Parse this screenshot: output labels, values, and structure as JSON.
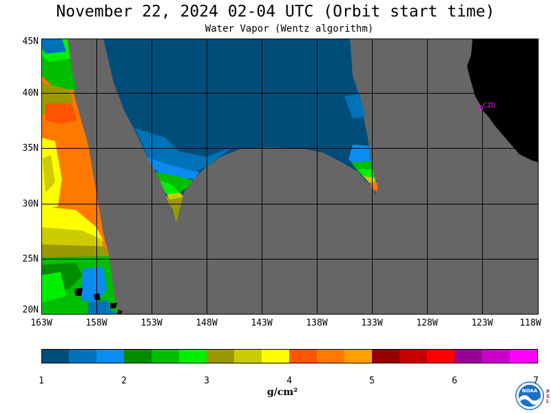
{
  "header": {
    "title": "November 22, 2024  02-04 UTC  (Orbit start time)",
    "subtitle": "Water Vapor (Wentz algorithm)"
  },
  "map": {
    "lat_labels": [
      "45N",
      "40N",
      "35N",
      "30N",
      "25N",
      "20N"
    ],
    "lon_labels": [
      "163W",
      "158W",
      "153W",
      "148W",
      "143W",
      "138W",
      "133W",
      "128W",
      "123W",
      "118W"
    ],
    "station_label": "CZD",
    "colors": {
      "no_data": "#666666",
      "land": "#000000",
      "grid": "#000000",
      "station": "#ff00ff"
    }
  },
  "colorbar": {
    "labels": [
      "1",
      "2",
      "3",
      "4",
      "5",
      "6",
      "7"
    ],
    "units": "g/cm²",
    "colors": [
      "#004d7a",
      "#0073b8",
      "#0a8cf0",
      "#008c00",
      "#00be00",
      "#00f000",
      "#999900",
      "#cccc00",
      "#ffff00",
      "#ff5500",
      "#ff7800",
      "#ffa000",
      "#960000",
      "#c80000",
      "#ff0000",
      "#960096",
      "#c800c8",
      "#ff00ff"
    ]
  },
  "logo": {
    "text": "NOAA",
    "side_letters": [
      "P",
      "S",
      "L"
    ]
  }
}
